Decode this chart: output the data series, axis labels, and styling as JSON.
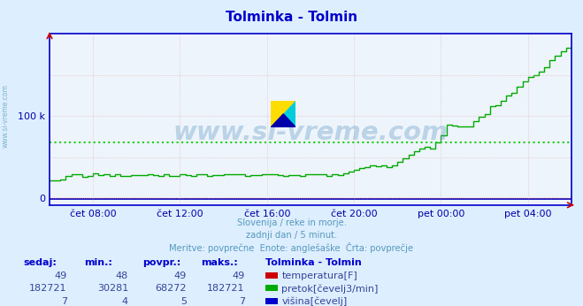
{
  "title": "Tolminka - Tolmin",
  "bg_color": "#ddeeff",
  "plot_bg_color": "#eef4fb",
  "title_color": "#0000cc",
  "axis_color": "#0000cc",
  "tick_color": "#0000aa",
  "grid_color_v": "#ddaaaa",
  "grid_color_h": "#ddaaaa",
  "subtitle_color": "#5599bb",
  "subtitle_lines": [
    "Slovenija / reke in morje.",
    "zadnji dan / 5 minut.",
    "Meritve: povprečne  Enote: anglešaške  Črta: povprečje"
  ],
  "table_headers": [
    "sedaj:",
    "min.:",
    "povpr.:",
    "maks.:"
  ],
  "table_station": "Tolminka - Tolmin",
  "table_rows": [
    {
      "sedaj": "49",
      "min": "48",
      "povpr": "49",
      "maks": "49",
      "color": "#cc0000",
      "label": "temperatura[F]"
    },
    {
      "sedaj": "182721",
      "min": "30281",
      "povpr": "68272",
      "maks": "182721",
      "color": "#00aa00",
      "label": "pretok[čevelj3/min]"
    },
    {
      "sedaj": "7",
      "min": "4",
      "povpr": "5",
      "maks": "7",
      "color": "#0000cc",
      "label": "višina[čevelj]"
    }
  ],
  "x_tick_labels": [
    "čet 08:00",
    "čet 12:00",
    "čet 16:00",
    "čet 20:00",
    "pet 00:00",
    "pet 04:00"
  ],
  "y_tick_labels": [
    "0",
    "100 k"
  ],
  "y_tick_positions": [
    0,
    100000
  ],
  "ylim": [
    -8000,
    200000
  ],
  "n_points": 289,
  "avg_line_y": 68272,
  "avg_line_color": "#00cc00",
  "watermark": "www.si-vreme.com",
  "watermark_color": "#4488bb",
  "left_label": "www.si-vreme.com",
  "left_label_color": "#5599bb"
}
